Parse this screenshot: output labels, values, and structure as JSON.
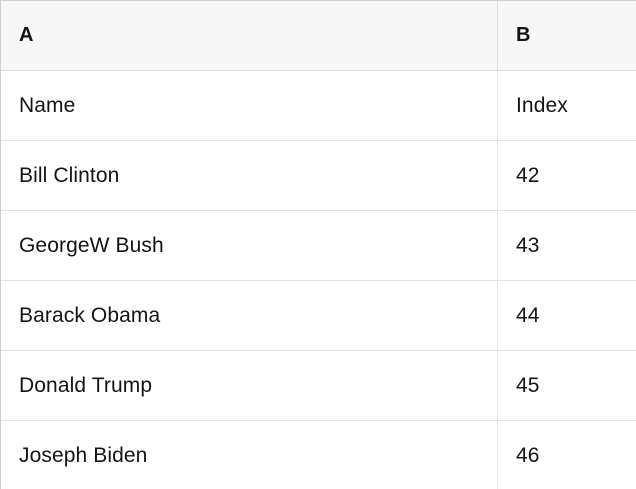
{
  "table": {
    "column_headers": [
      "A",
      "B"
    ],
    "rows": [
      [
        "Name",
        "Index"
      ],
      [
        "Bill Clinton",
        "42"
      ],
      [
        "GeorgeW Bush",
        "43"
      ],
      [
        "Barack Obama",
        "44"
      ],
      [
        "Donald Trump",
        "45"
      ],
      [
        "Joseph Biden",
        "46"
      ]
    ]
  },
  "colors": {
    "header_background": "#f7f7f7",
    "row_background": "#ffffff",
    "grid_line": "#e3e3e3",
    "outer_border": "#cfcfcf",
    "text": "#141414"
  }
}
